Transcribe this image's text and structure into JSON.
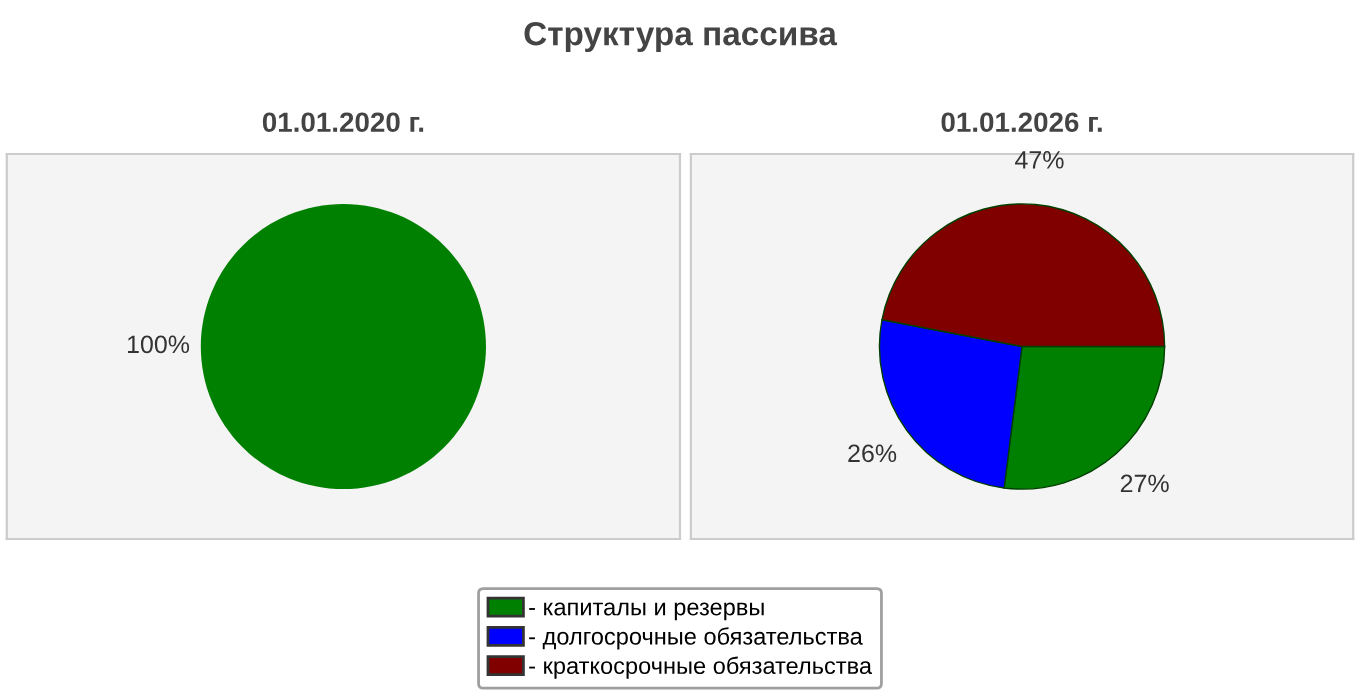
{
  "chart_data": [
    {
      "type": "pie",
      "title": "Структура пассива",
      "subtitle": "01.01.2020 г.",
      "categories": [
        null
      ],
      "values": [
        100
      ],
      "colors": [
        "#008000"
      ],
      "value_labels": [
        "100%"
      ]
    },
    {
      "type": "pie",
      "subtitle": "01.01.2026 г.",
      "categories": [
        "- капиталы и резервы",
        "- долгосрочные обязательства",
        "- краткосрочные обязательства"
      ],
      "values": [
        27,
        26,
        47
      ],
      "colors": [
        "#008000",
        "#0000ff",
        "#800000"
      ],
      "value_labels": [
        "27%",
        "26%",
        "47%"
      ],
      "legend": "bottom"
    }
  ]
}
